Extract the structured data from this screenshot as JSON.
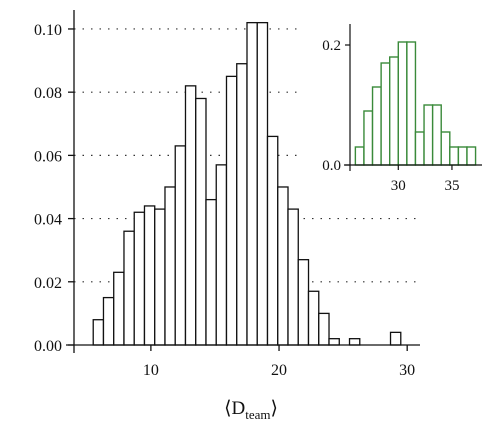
{
  "chart_data": [
    {
      "type": "bar",
      "xlabel": "⟨D",
      "xlabel_sub": "team",
      "xlabel_close": "⟩",
      "xlim": [
        4,
        31
      ],
      "ylim": [
        0,
        0.106
      ],
      "x_ticks": [
        10,
        20,
        30
      ],
      "x_tick_labels": [
        "10",
        "20",
        "30"
      ],
      "y_ticks": [
        0.0,
        0.02,
        0.04,
        0.06,
        0.08,
        0.1
      ],
      "y_tick_labels": [
        "0.00",
        "0.02",
        "0.04",
        "0.06",
        "0.08",
        "0.10"
      ],
      "bin_width": 0.8,
      "bin_starts": [
        5.5,
        6.3,
        7.1,
        7.9,
        8.7,
        9.5,
        10.3,
        11.1,
        11.9,
        12.7,
        13.5,
        14.3,
        15.1,
        15.9,
        16.7,
        17.5,
        18.3,
        19.1,
        19.9,
        20.7,
        21.5,
        22.3,
        23.1,
        23.9,
        24.7,
        25.5,
        26.3,
        27.1,
        27.9,
        28.7
      ],
      "values": [
        0.008,
        0.015,
        0.023,
        0.036,
        0.042,
        0.044,
        0.043,
        0.05,
        0.063,
        0.082,
        0.078,
        0.046,
        0.057,
        0.085,
        0.089,
        0.102,
        0.102,
        0.066,
        0.05,
        0.043,
        0.027,
        0.017,
        0.01,
        0.002,
        0.0,
        0.002,
        0.0,
        0.0,
        0.0,
        0.004
      ],
      "bar_color": "#ffffff",
      "edge_color": "#111111",
      "grid": "dotted horizontal at y ticks"
    },
    {
      "type": "bar",
      "role": "inset",
      "xlim": [
        25.5,
        37.8
      ],
      "ylim": [
        0,
        0.235
      ],
      "x_ticks": [
        30,
        35
      ],
      "x_tick_labels": [
        "30",
        "35"
      ],
      "y_ticks": [
        0.0,
        0.2
      ],
      "y_tick_labels": [
        "0.0",
        "0.2"
      ],
      "bin_width": 0.8,
      "bin_starts": [
        26.0,
        26.8,
        27.6,
        28.4,
        29.2,
        30.0,
        30.8,
        31.6,
        32.4,
        33.2,
        34.0,
        34.8,
        35.6,
        36.4
      ],
      "values": [
        0.03,
        0.09,
        0.13,
        0.17,
        0.18,
        0.205,
        0.205,
        0.055,
        0.1,
        0.1,
        0.055,
        0.03,
        0.03,
        0.03
      ],
      "bar_color": "#ffffff",
      "edge_color": "#3a8a3a"
    }
  ]
}
